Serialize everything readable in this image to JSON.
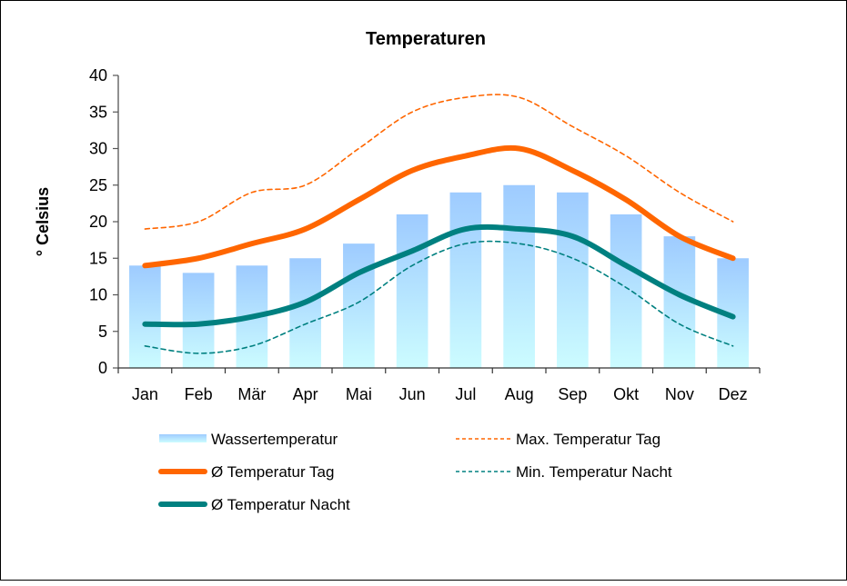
{
  "chart_data": {
    "type": "bar",
    "title": "Temperaturen",
    "xlabel": "",
    "ylabel": "° Celsius",
    "ylim": [
      0,
      40
    ],
    "yticks": [
      0,
      5,
      10,
      15,
      20,
      25,
      30,
      35,
      40
    ],
    "grid": false,
    "legend_position": "bottom",
    "categories": [
      "Jan",
      "Feb",
      "Mär",
      "Apr",
      "Mai",
      "Jun",
      "Jul",
      "Aug",
      "Sep",
      "Okt",
      "Nov",
      "Dez"
    ],
    "series": [
      {
        "name": "Wassertemperatur",
        "kind": "bar",
        "color": "#9ecbff",
        "color_bottom": "#ccfcff",
        "values": [
          14,
          13,
          14,
          15,
          17,
          21,
          24,
          25,
          24,
          21,
          18,
          15
        ]
      },
      {
        "name": "Ø Temperatur Tag",
        "kind": "line",
        "style": "solid-thick",
        "color": "#ff6600",
        "values": [
          14,
          15,
          17,
          19,
          23,
          27,
          29,
          30,
          27,
          23,
          18,
          15
        ]
      },
      {
        "name": "Ø Temperatur Nacht",
        "kind": "line",
        "style": "solid-thick",
        "color": "#008080",
        "values": [
          6,
          6,
          7,
          9,
          13,
          16,
          19,
          19,
          18,
          14,
          10,
          7
        ]
      },
      {
        "name": "Max. Temperatur Tag",
        "kind": "line",
        "style": "dashed",
        "color": "#ff6600",
        "values": [
          19,
          20,
          24,
          25,
          30,
          35,
          37,
          37,
          33,
          29,
          24,
          20
        ]
      },
      {
        "name": "Min.  Temperatur Nacht",
        "kind": "line",
        "style": "dashed",
        "color": "#008080",
        "values": [
          3,
          2,
          3,
          6,
          9,
          14,
          17,
          17,
          15,
          11,
          6,
          3
        ]
      }
    ],
    "legend": [
      {
        "label": "Wassertemperatur",
        "series": 0
      },
      {
        "label": "Max. Temperatur Tag",
        "series": 3
      },
      {
        "label": "Ø Temperatur Tag",
        "series": 1
      },
      {
        "label": "Min.  Temperatur Nacht",
        "series": 4
      },
      {
        "label": "Ø Temperatur Nacht",
        "series": 2
      }
    ]
  }
}
